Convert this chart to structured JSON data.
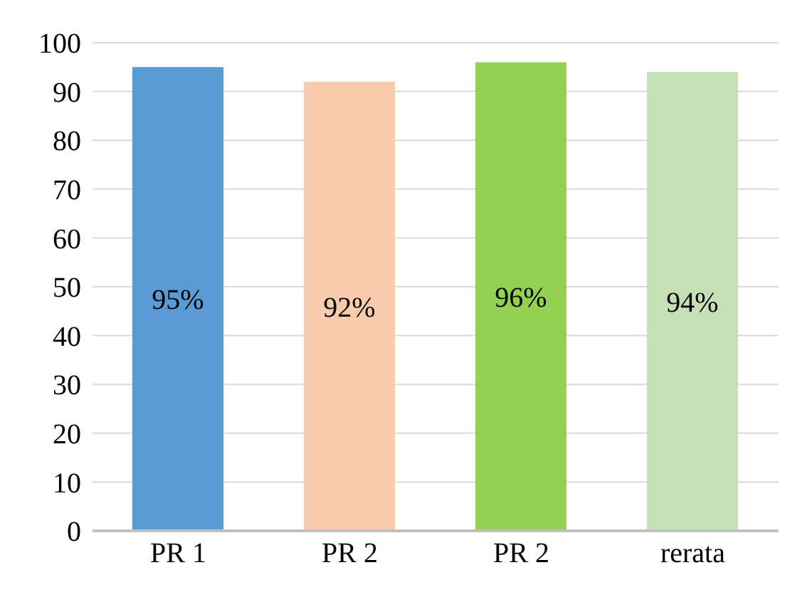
{
  "chart_data": {
    "type": "bar",
    "categories": [
      "PR 1",
      "PR 2",
      "PR 2",
      "rerata"
    ],
    "values": [
      95,
      92,
      96,
      94
    ],
    "colors": [
      "#5b9bd5",
      "#f8cbad",
      "#92d050",
      "#c5e0b4"
    ],
    "value_labels": [
      "95%",
      "92%",
      "96%",
      "94%"
    ],
    "ylim": [
      0,
      100
    ],
    "yticks": [
      0,
      10,
      20,
      30,
      40,
      50,
      60,
      70,
      80,
      90,
      100
    ],
    "grid": "y"
  }
}
